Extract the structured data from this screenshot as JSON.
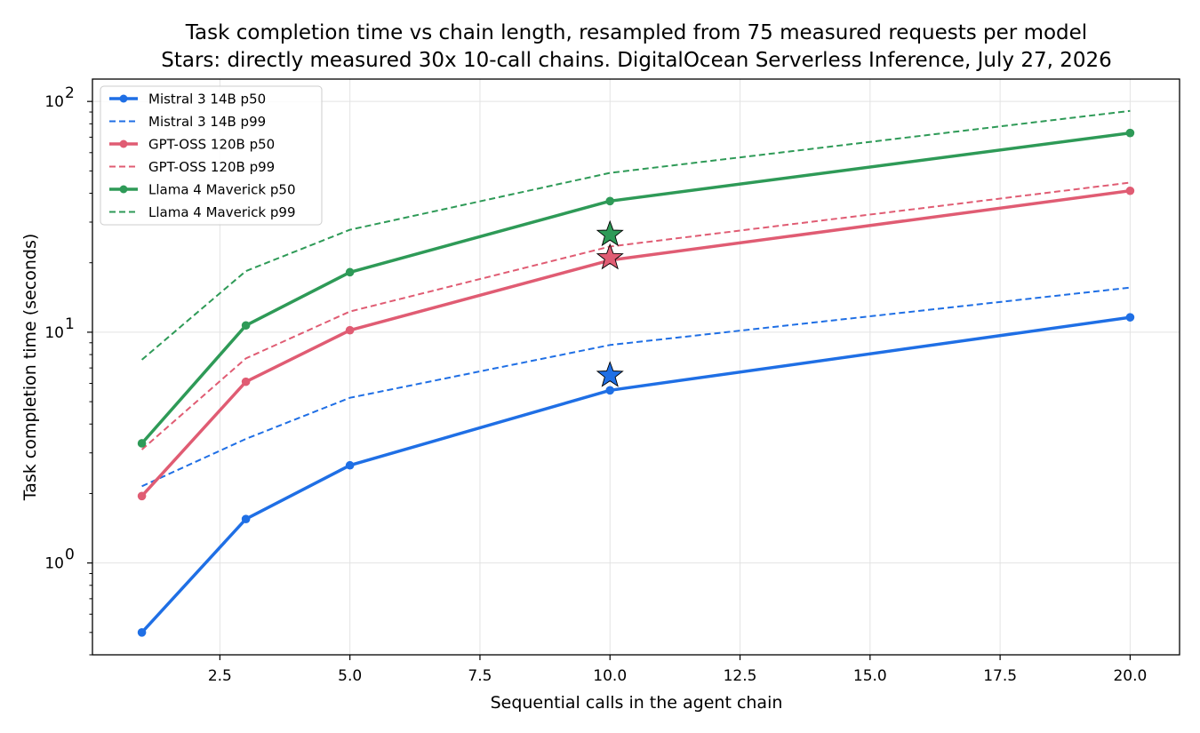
{
  "chart_data": {
    "type": "line",
    "title": "Task completion time vs chain length, resampled from 75 measured requests per model",
    "subtitle": "Stars: directly measured 30x 10-call chains. DigitalOcean Serverless Inference, July 27, 2026",
    "xlabel": "Sequential calls in the agent chain",
    "ylabel": "Task completion time (seconds)",
    "x": [
      1,
      3,
      5,
      10,
      20
    ],
    "xlim": [
      0.05,
      20.95
    ],
    "ylim": [
      0.4,
      125
    ],
    "yscale": "log",
    "grid": true,
    "legend_position": "upper-left",
    "x_ticks": [
      2.5,
      5.0,
      7.5,
      10.0,
      12.5,
      15.0,
      17.5,
      20.0
    ],
    "x_tick_labels": [
      "2.5",
      "5.0",
      "7.5",
      "10.0",
      "12.5",
      "15.0",
      "17.5",
      "20.0"
    ],
    "y_ticks": [
      {
        "value": 1,
        "base": "10",
        "exp": "0"
      },
      {
        "value": 10,
        "base": "10",
        "exp": "1"
      },
      {
        "value": 100,
        "base": "10",
        "exp": "2"
      }
    ],
    "series": [
      {
        "name": "Mistral 3 14B p50",
        "style": "solid",
        "markers": true,
        "color": "#1f6fe5",
        "values": [
          0.5,
          1.55,
          2.65,
          5.6,
          11.6
        ]
      },
      {
        "name": "Mistral 3 14B p99",
        "style": "dashed",
        "markers": false,
        "color": "#1f6fe5",
        "values": [
          2.15,
          3.45,
          5.2,
          8.8,
          15.6
        ]
      },
      {
        "name": "GPT-OSS 120B p50",
        "style": "solid",
        "markers": true,
        "color": "#e05c73",
        "values": [
          1.95,
          6.1,
          10.2,
          20.5,
          41
        ]
      },
      {
        "name": "GPT-OSS 120B p99",
        "style": "dashed",
        "markers": false,
        "color": "#e05c73",
        "values": [
          3.1,
          7.7,
          12.3,
          23.5,
          44.5
        ]
      },
      {
        "name": "Llama 4 Maverick p50",
        "style": "solid",
        "markers": true,
        "color": "#2e9a57",
        "values": [
          3.3,
          10.7,
          18.2,
          37,
          73
        ]
      },
      {
        "name": "Llama 4 Maverick p99",
        "style": "dashed",
        "markers": false,
        "color": "#2e9a57",
        "values": [
          7.6,
          18.4,
          27.8,
          49,
          91
        ]
      }
    ],
    "measured_points": [
      {
        "model": "Mistral 3 14B",
        "x": 10,
        "y": 6.5,
        "color": "#1f6fe5"
      },
      {
        "model": "GPT-OSS 120B",
        "x": 10,
        "y": 21,
        "color": "#e05c73"
      },
      {
        "model": "Llama 4 Maverick",
        "x": 10,
        "y": 26.5,
        "color": "#2e9a57"
      }
    ]
  }
}
